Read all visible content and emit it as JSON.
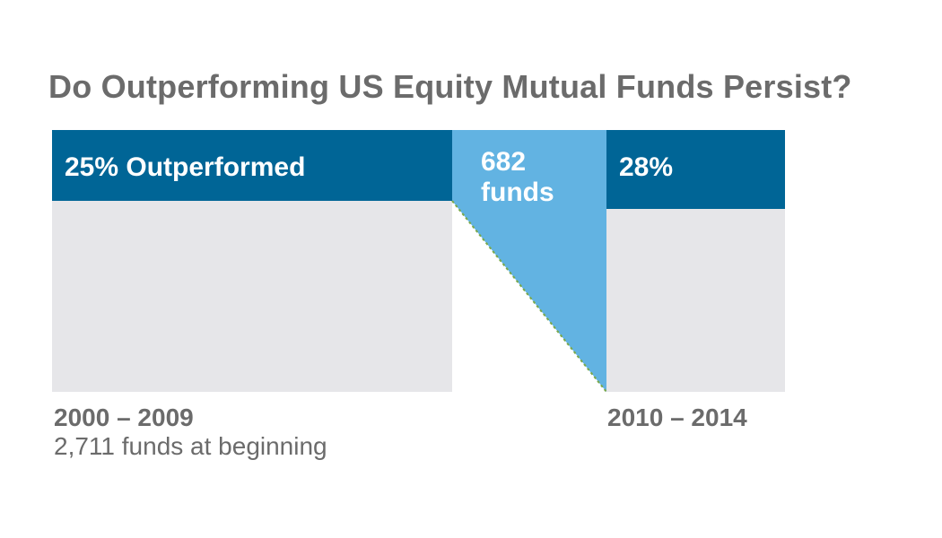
{
  "title": "Do Outperforming US Equity Mutual Funds Persist?",
  "colors": {
    "outperformed": "#006596",
    "carried": "#62b3e2",
    "remainder": "#e6e6e9",
    "connector": "#7aa84a",
    "text": "#6b6b6b"
  },
  "chart_data": {
    "type": "bar",
    "categories": [
      "2000 – 2009",
      "2010 – 2014"
    ],
    "series": [
      {
        "name": "Outperformed",
        "values": [
          25,
          28
        ],
        "unit": "%"
      }
    ],
    "labels": {
      "first_band": "25% Outperformed",
      "second_band": "28%",
      "flow": [
        "682",
        "funds"
      ],
      "first_period": "2000 – 2009",
      "first_period_note": "2,711 funds at beginning",
      "second_period": "2010 – 2014"
    },
    "funds_at_beginning": 2711,
    "funds_carried_forward": 682
  }
}
